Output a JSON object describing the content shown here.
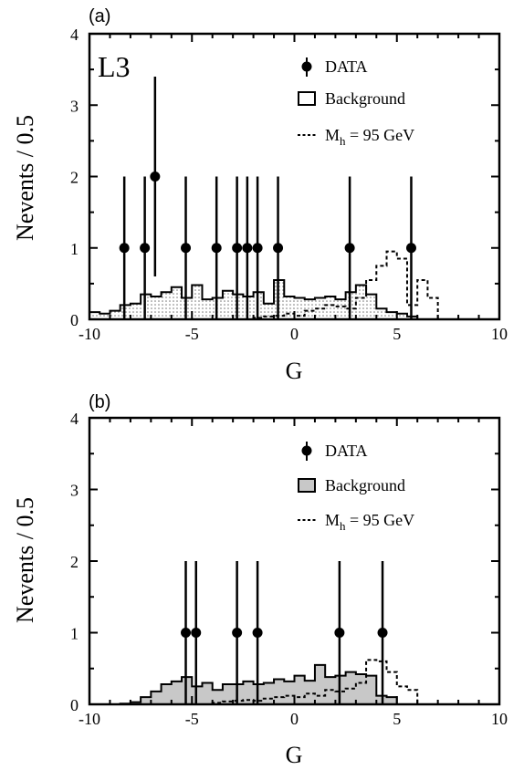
{
  "colors": {
    "axes": "#000000",
    "background_fill": "#c8c8c8",
    "signal_line": "#000000",
    "data_marker": "#000000"
  },
  "chart_data": [
    {
      "type": "histogram",
      "panel_label": "(a)",
      "experiment_label": "L3",
      "xlabel": "G",
      "ylabel": "Nevents / 0.5",
      "xlim": [
        -10,
        10
      ],
      "ylim": [
        0,
        4
      ],
      "xticks": [
        "-10",
        "-5",
        "0",
        "5",
        "10"
      ],
      "yticks": [
        "0",
        "1",
        "2",
        "3",
        "4"
      ],
      "legend": {
        "data": "DATA",
        "background": "Background",
        "signal": "M",
        "signal_sub": "h",
        "signal_rest": " = 95 GeV",
        "placement": "top-right"
      },
      "background_filled": false,
      "bin_width": 0.5,
      "background": {
        "edges": [
          -10,
          -9.5,
          -9,
          -8.5,
          -8,
          -7.5,
          -7,
          -6.5,
          -6,
          -5.5,
          -5,
          -4.5,
          -4,
          -3.5,
          -3,
          -2.5,
          -2,
          -1.5,
          -1,
          -0.5,
          0,
          0.5,
          1,
          1.5,
          2,
          2.5,
          3,
          3.5,
          4,
          4.5,
          5,
          5.5,
          6
        ],
        "values": [
          0.1,
          0.08,
          0.12,
          0.2,
          0.22,
          0.35,
          0.32,
          0.38,
          0.45,
          0.3,
          0.48,
          0.28,
          0.3,
          0.4,
          0.35,
          0.32,
          0.38,
          0.22,
          0.55,
          0.32,
          0.3,
          0.28,
          0.3,
          0.32,
          0.28,
          0.38,
          0.48,
          0.35,
          0.15,
          0.1,
          0.08,
          0.04
        ]
      },
      "signal": {
        "edges": [
          -2,
          -1.5,
          -1,
          -0.5,
          0,
          0.5,
          1,
          1.5,
          2,
          2.5,
          3,
          3.5,
          4,
          4.5,
          5,
          5.5,
          6,
          6.5,
          7
        ],
        "values": [
          0.02,
          0.04,
          0.05,
          0.08,
          0.05,
          0.12,
          0.15,
          0.2,
          0.18,
          0.15,
          0.3,
          0.55,
          0.75,
          0.95,
          0.85,
          0.2,
          0.55,
          0.3
        ]
      },
      "data_points": [
        {
          "x": -8.3,
          "y": 1,
          "err_low": 1,
          "err_high": 1
        },
        {
          "x": -7.3,
          "y": 1,
          "err_low": 1,
          "err_high": 1
        },
        {
          "x": -6.8,
          "y": 2,
          "err_low": 1.4,
          "err_high": 1.4
        },
        {
          "x": -5.3,
          "y": 1,
          "err_low": 1,
          "err_high": 1
        },
        {
          "x": -3.8,
          "y": 1,
          "err_low": 1,
          "err_high": 1
        },
        {
          "x": -2.8,
          "y": 1,
          "err_low": 1,
          "err_high": 1
        },
        {
          "x": -2.3,
          "y": 1,
          "err_low": 1,
          "err_high": 1
        },
        {
          "x": -1.8,
          "y": 1,
          "err_low": 1,
          "err_high": 1
        },
        {
          "x": -0.8,
          "y": 1,
          "err_low": 1,
          "err_high": 1
        },
        {
          "x": 2.7,
          "y": 1,
          "err_low": 1,
          "err_high": 1
        },
        {
          "x": 5.7,
          "y": 1,
          "err_low": 1,
          "err_high": 1
        }
      ]
    },
    {
      "type": "histogram",
      "panel_label": "(b)",
      "experiment_label": "",
      "xlabel": "G",
      "ylabel": "Nevents / 0.5",
      "xlim": [
        -10,
        10
      ],
      "ylim": [
        0,
        4
      ],
      "xticks": [
        "-10",
        "-5",
        "0",
        "5",
        "10"
      ],
      "yticks": [
        "0",
        "1",
        "2",
        "3",
        "4"
      ],
      "legend": {
        "data": "DATA",
        "background": "Background",
        "signal": "M",
        "signal_sub": "h",
        "signal_rest": " = 95 GeV",
        "placement": "top-right"
      },
      "background_filled": true,
      "bin_width": 0.5,
      "background": {
        "edges": [
          -10,
          -9.5,
          -9,
          -8.5,
          -8,
          -7.5,
          -7,
          -6.5,
          -6,
          -5.5,
          -5,
          -4.5,
          -4,
          -3.5,
          -3,
          -2.5,
          -2,
          -1.5,
          -1,
          -0.5,
          0,
          0.5,
          1,
          1.5,
          2,
          2.5,
          3,
          3.5,
          4,
          4.5,
          5
        ],
        "values": [
          0,
          0,
          0,
          0.01,
          0.03,
          0.1,
          0.18,
          0.28,
          0.32,
          0.38,
          0.25,
          0.3,
          0.2,
          0.28,
          0.28,
          0.32,
          0.28,
          0.3,
          0.35,
          0.32,
          0.4,
          0.33,
          0.55,
          0.38,
          0.4,
          0.45,
          0.42,
          0.4,
          0.12,
          0.1
        ]
      },
      "signal": {
        "edges": [
          -4,
          -3.5,
          -3,
          -2.5,
          -2,
          -1.5,
          -1,
          -0.5,
          0,
          0.5,
          1,
          1.5,
          2,
          2.5,
          3,
          3.5,
          4,
          4.5,
          5,
          5.5,
          6
        ],
        "values": [
          0.02,
          0.04,
          0.05,
          0.06,
          0.05,
          0.08,
          0.1,
          0.12,
          0.1,
          0.15,
          0.12,
          0.2,
          0.18,
          0.22,
          0.3,
          0.62,
          0.6,
          0.45,
          0.25,
          0.2
        ]
      },
      "data_points": [
        {
          "x": -5.3,
          "y": 1,
          "err_low": 1,
          "err_high": 1
        },
        {
          "x": -4.8,
          "y": 1,
          "err_low": 1,
          "err_high": 1
        },
        {
          "x": -2.8,
          "y": 1,
          "err_low": 1,
          "err_high": 1
        },
        {
          "x": -1.8,
          "y": 1,
          "err_low": 1,
          "err_high": 1
        },
        {
          "x": 2.2,
          "y": 1,
          "err_low": 1,
          "err_high": 1
        },
        {
          "x": 4.3,
          "y": 1,
          "err_low": 1,
          "err_high": 1
        }
      ]
    }
  ]
}
